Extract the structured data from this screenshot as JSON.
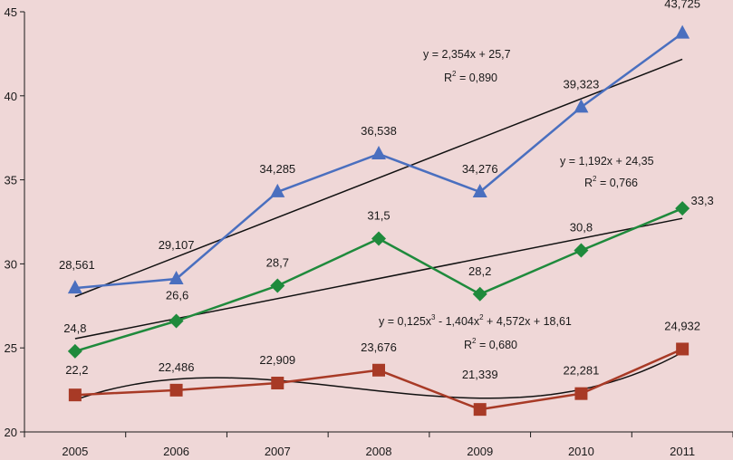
{
  "colors": {
    "background": "#efd7d7",
    "axis": "#1a1a1a",
    "trend": "#111111"
  },
  "chart_data": {
    "type": "line",
    "x": [
      "2005",
      "2006",
      "2007",
      "2008",
      "2009",
      "2010",
      "2011"
    ],
    "ylim": [
      20,
      45
    ],
    "yticks": [
      20,
      25,
      30,
      35,
      40,
      45
    ],
    "grid": false,
    "series": [
      {
        "color": "#4a6fbf",
        "marker": "triangle",
        "values": [
          28.561,
          29.107,
          34.285,
          36.538,
          34.276,
          39.323,
          43.725
        ],
        "labels": [
          "28,561",
          "29,107",
          "34,285",
          "36,538",
          "34,276",
          "39,323",
          "43,725"
        ],
        "trendline": {
          "type": "linear",
          "equation": "y = 2,354x + 25,7",
          "r2_label": "R",
          "r2_sup": "2",
          "r2_value": " = 0,890"
        }
      },
      {
        "color": "#1f8a3c",
        "marker": "diamond",
        "values": [
          24.8,
          26.6,
          28.7,
          31.5,
          28.2,
          30.8,
          33.3
        ],
        "labels": [
          "24,8",
          "26,6",
          "28,7",
          "31,5",
          "28,2",
          "30,8",
          "33,3"
        ],
        "trendline": {
          "type": "linear",
          "equation": "y = 1,192x + 24,35",
          "r2_label": "R",
          "r2_sup": "2",
          "r2_value": " = 0,766"
        }
      },
      {
        "color": "#a83a26",
        "marker": "square",
        "values": [
          22.2,
          22.486,
          22.909,
          23.676,
          21.339,
          22.281,
          24.932
        ],
        "labels": [
          "22,2",
          "22,486",
          "22,909",
          "23,676",
          "21,339",
          "22,281",
          "24,932"
        ],
        "trendline": {
          "type": "polynomial",
          "equation_parts": [
            "y = 0,125x",
            "3",
            " - 1,404x",
            "2",
            " + 4,572x + 18,61"
          ],
          "r2_label": "R",
          "r2_sup": "2",
          "r2_value": " = 0,680"
        }
      }
    ]
  }
}
